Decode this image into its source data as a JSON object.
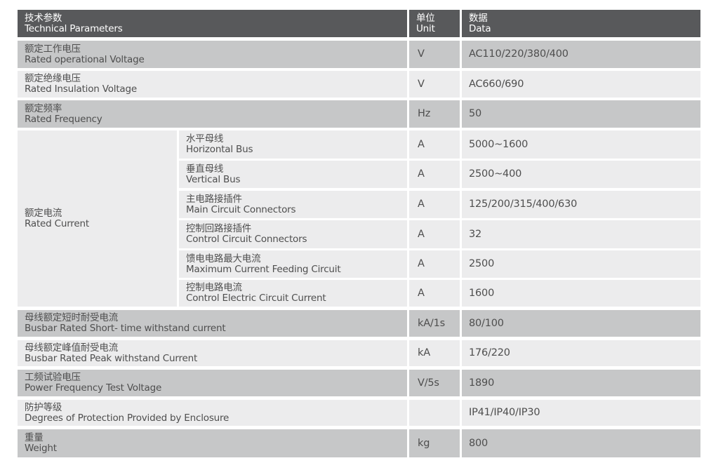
{
  "header": {
    "param_cn": "技术参数",
    "param_en": "Technical Parameters",
    "unit_cn": "单位",
    "unit_en": "Unit",
    "data_cn": "数据",
    "data_en": "Data"
  },
  "rows": [
    {
      "cn": "额定工作电压",
      "en": "Rated operational Voltage",
      "unit": "V",
      "data": "AC110/220/380/400"
    },
    {
      "cn": "额定绝缘电压",
      "en": "Rated Insulation Voltage",
      "unit": "V",
      "data": "AC660/690"
    },
    {
      "cn": "额定频率",
      "en": "Rated Frequency",
      "unit": "Hz",
      "data": "50"
    }
  ],
  "rated_current": {
    "cn": "额定电流",
    "en": "Rated Current",
    "sub": [
      {
        "cn": "水平母线",
        "en": "Horizontal Bus",
        "unit": "A",
        "data": "5000~1600"
      },
      {
        "cn": "垂直母线",
        "en": "Vertical Bus",
        "unit": "A",
        "data": "2500~400"
      },
      {
        "cn": "主电路接插件",
        "en": "Main Circuit Connectors",
        "unit": "A",
        "data": "125/200/315/400/630"
      },
      {
        "cn": "控制回路接插件",
        "en": "Control Circuit Connectors",
        "unit": "A",
        "data": "32"
      },
      {
        "cn": "馈电电路最大电流",
        "en": "Maximum Current Feeding Circuit",
        "unit": "A",
        "data": "2500"
      },
      {
        "cn": "控制电路电流",
        "en": "Control Electric Circuit Current",
        "unit": "A",
        "data": "1600"
      }
    ]
  },
  "rows2": [
    {
      "cn": "母线额定短时耐受电流",
      "en": "Busbar Rated Short- time withstand current",
      "unit": "kA/1s",
      "data": "80/100"
    },
    {
      "cn": "母线额定峰值耐受电流",
      "en": "Busbar Rated Peak withstand Current",
      "unit": "kA",
      "data": "176/220"
    },
    {
      "cn": "工频试验电压",
      "en": "Power Frequency Test Voltage",
      "unit": "V/5s",
      "data": "1890"
    },
    {
      "cn": "防护等级",
      "en": "Degrees of Protection Provided by Enclosure",
      "unit": "",
      "data": "IP41/IP40/IP30"
    },
    {
      "cn": "重量",
      "en": "Weight",
      "unit": "kg",
      "data": "800"
    }
  ]
}
